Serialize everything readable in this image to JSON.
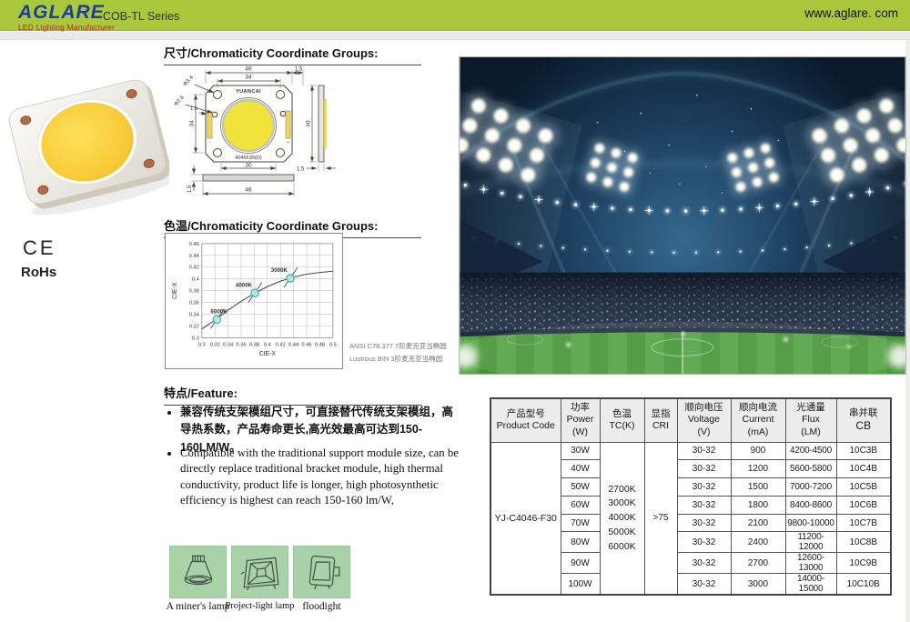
{
  "header": {
    "logo_title": "AGLARE",
    "logo_subtitle": "LED Lighting Manufacturer",
    "series": "COB-TL Series",
    "website": "www.aglare. com"
  },
  "certifications": {
    "ce_mark": "CE",
    "rohs": "RoHs"
  },
  "section_titles": {
    "dimensions": "尺寸/Chromaticity Coordinate Groups:",
    "chromaticity": "色温/Chromaticity Coordinate Groups:",
    "features": "特点/Feature:"
  },
  "dimension_drawing": {
    "top_width": "46",
    "inner_width": "34",
    "chamfer": "1.5",
    "hole_dia_a": "Φ3.4",
    "hole_dia_b": "Φ2.6",
    "electrode_offset": "1.5",
    "left_height": "34",
    "les_width": "30",
    "bottom_width": "46",
    "base_thickness": "1.5",
    "side_height": "40",
    "side_thickness": "1.5",
    "chip_brand": "YUANCAI",
    "chip_model": "4046F30(D)",
    "polarity_plus": "+",
    "polarity_minus": "-"
  },
  "chart_data": {
    "type": "scatter",
    "title": "色温/Chromaticity Coordinate Groups",
    "xlabel": "CIE-X",
    "ylabel": "CIE-X",
    "xlim": [
      0.3,
      0.5
    ],
    "ylim": [
      0.3,
      0.46
    ],
    "grid": true,
    "x_ticks": [
      0.3,
      0.32,
      0.34,
      0.36,
      0.38,
      0.4,
      0.42,
      0.44,
      0.46,
      0.48,
      0.5
    ],
    "y_ticks": [
      0.3,
      0.32,
      0.34,
      0.36,
      0.38,
      0.4,
      0.42,
      0.44,
      0.46
    ],
    "points": [
      {
        "label": "6000K",
        "x": 0.323,
        "y": 0.331
      },
      {
        "label": "4000K",
        "x": 0.381,
        "y": 0.376
      },
      {
        "label": "3000K",
        "x": 0.435,
        "y": 0.401
      }
    ],
    "curve": [
      [
        0.3,
        0.315
      ],
      [
        0.32,
        0.33
      ],
      [
        0.34,
        0.347
      ],
      [
        0.36,
        0.362
      ],
      [
        0.38,
        0.375
      ],
      [
        0.4,
        0.387
      ],
      [
        0.42,
        0.396
      ],
      [
        0.44,
        0.403
      ],
      [
        0.46,
        0.408
      ],
      [
        0.48,
        0.411
      ],
      [
        0.5,
        0.413
      ]
    ],
    "legend_position": "none",
    "notes": [
      "ANSI C78.377 7阶麦克亚当椭圆",
      "Lustrous BIN 3阶麦克亚当椭圆"
    ]
  },
  "features": {
    "zh": "兼容传统支架模组尺寸，可直接替代传统支架模组，高导热系数，产品寿命更长,高光效最高可达到150-160LM/W。",
    "en": "Compatible with the traditional support module size, can be directly replace traditional bracket module, high thermal conductivity, product life is longer, high photosynthetic efficiency is highest can reach 150-160 lm/W,"
  },
  "applications": {
    "items": [
      {
        "label": "A miner's lamp",
        "icon": "high-bay-lamp-icon"
      },
      {
        "label": "Project-light lamp",
        "icon": "project-light-icon"
      },
      {
        "label": "floodight",
        "icon": "floodlight-icon"
      }
    ]
  },
  "spec_table": {
    "headers": [
      {
        "zh": "产品型号",
        "en": "Product Code",
        "unit": ""
      },
      {
        "zh": "功率",
        "en": "Power",
        "unit": "(W)"
      },
      {
        "zh": "色温",
        "en": "TC(K)",
        "unit": ""
      },
      {
        "zh": "显指",
        "en": "CRI",
        "unit": ""
      },
      {
        "zh": "顺向电压",
        "en": "Voltage",
        "unit": "(V)"
      },
      {
        "zh": "顺向电流",
        "en": "Current",
        "unit": "(mA)"
      },
      {
        "zh": "光通量",
        "en": "Flux",
        "unit": "(LM)"
      },
      {
        "zh": "串并联",
        "en": "CB",
        "unit": ""
      }
    ],
    "product_code": "YJ-C4046-F30",
    "tc_values": [
      "2700K",
      "3000K",
      "4000K",
      "5000K",
      "6000K"
    ],
    "cri": ">75",
    "rows": [
      {
        "power": "30W",
        "voltage": "30-32",
        "current": "900",
        "flux": "4200-4500",
        "cb": "10C3B"
      },
      {
        "power": "40W",
        "voltage": "30-32",
        "current": "1200",
        "flux": "5600-5800",
        "cb": "10C4B"
      },
      {
        "power": "50W",
        "voltage": "30-32",
        "current": "1500",
        "flux": "7000-7200",
        "cb": "10C5B"
      },
      {
        "power": "60W",
        "voltage": "30-32",
        "current": "1800",
        "flux": "8400-8600",
        "cb": "10C6B"
      },
      {
        "power": "70W",
        "voltage": "30-32",
        "current": "2100",
        "flux": "9800-10000",
        "cb": "10C7B"
      },
      {
        "power": "80W",
        "voltage": "30-32",
        "current": "2400",
        "flux": "11200-12000",
        "cb": "10C8B"
      },
      {
        "power": "90W",
        "voltage": "30-32",
        "current": "2700",
        "flux": "12600-13000",
        "cb": "10C9B"
      },
      {
        "power": "100W",
        "voltage": "30-32",
        "current": "3000",
        "flux": "14000-15000",
        "cb": "10C10B"
      }
    ]
  }
}
